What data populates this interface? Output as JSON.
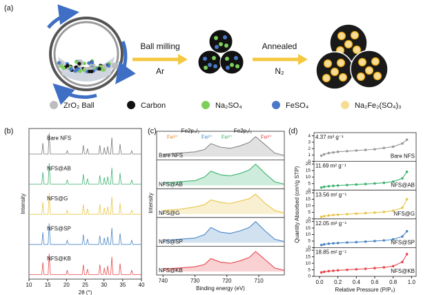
{
  "diagram": {
    "label": "(a)",
    "steps": [
      {
        "top": "Ball milling",
        "bottom": "Ar"
      },
      {
        "top": "Annealed",
        "bottom": "N₂"
      }
    ],
    "legend": [
      {
        "name": "ZrO₂ Ball",
        "color": "#bdbdbd"
      },
      {
        "name": "Carbon",
        "color": "#111111"
      },
      {
        "name": "Na₂SO₄",
        "color": "#7dcf5a"
      },
      {
        "name": "FeSO₄",
        "color": "#4a78c8"
      },
      {
        "name": "Na₂Fe₂(SO₄)₃",
        "color": "#f6dc94"
      }
    ]
  },
  "chart_data": [
    {
      "type": "line",
      "label": "(b)",
      "xlabel": "2θ (°)",
      "ylabel": "Intensity",
      "xlim": [
        10,
        40
      ],
      "xticks": [
        10,
        15,
        20,
        25,
        30,
        35,
        40
      ],
      "x": [
        10,
        13.4,
        13.7,
        14.0,
        15.1,
        15.4,
        15.7,
        19.9,
        20.2,
        20.5,
        24.2,
        24.5,
        24.8,
        25.3,
        25.6,
        25.9,
        28.6,
        28.9,
        29.2,
        29.8,
        30.1,
        30.4,
        30.7,
        31.0,
        31.3,
        31.8,
        32.1,
        32.4,
        34.0,
        34.3,
        34.6,
        37.1,
        37.4,
        37.7,
        40
      ],
      "series": [
        {
          "name": "Bare NFS",
          "color": "#777777",
          "values": [
            0.05,
            0.05,
            0.55,
            0.05,
            0.05,
            1.0,
            0.05,
            0.05,
            0.2,
            0.05,
            0.05,
            0.45,
            0.05,
            0.05,
            0.3,
            0.05,
            0.05,
            0.45,
            0.05,
            0.05,
            0.35,
            0.05,
            0.05,
            0.4,
            0.05,
            0.05,
            0.8,
            0.05,
            0.05,
            0.5,
            0.05,
            0.05,
            0.2,
            0.05,
            0.05
          ]
        },
        {
          "name": "NFS@AB",
          "color": "#3cb371",
          "values": [
            0.05,
            0.05,
            0.6,
            0.05,
            0.05,
            1.0,
            0.05,
            0.05,
            0.25,
            0.05,
            0.05,
            0.5,
            0.05,
            0.05,
            0.3,
            0.05,
            0.05,
            0.45,
            0.05,
            0.05,
            0.35,
            0.05,
            0.05,
            0.4,
            0.05,
            0.05,
            0.8,
            0.05,
            0.05,
            0.55,
            0.05,
            0.05,
            0.25,
            0.05,
            0.05
          ]
        },
        {
          "name": "NFS@G",
          "color": "#e8c547",
          "values": [
            0.05,
            0.05,
            0.6,
            0.05,
            0.05,
            1.0,
            0.05,
            0.05,
            0.25,
            0.05,
            0.05,
            0.5,
            0.05,
            0.05,
            0.3,
            0.05,
            0.05,
            0.5,
            0.05,
            0.05,
            0.35,
            0.05,
            0.05,
            0.4,
            0.05,
            0.05,
            0.85,
            0.05,
            0.05,
            0.55,
            0.05,
            0.05,
            0.25,
            0.05,
            0.05
          ]
        },
        {
          "name": "NFS@SP",
          "color": "#4a86c5",
          "values": [
            0.05,
            0.05,
            0.6,
            0.05,
            0.05,
            1.0,
            0.05,
            0.05,
            0.25,
            0.05,
            0.05,
            0.5,
            0.05,
            0.05,
            0.3,
            0.05,
            0.05,
            0.45,
            0.05,
            0.05,
            0.35,
            0.05,
            0.05,
            0.4,
            0.05,
            0.05,
            0.8,
            0.05,
            0.05,
            0.55,
            0.05,
            0.05,
            0.25,
            0.05,
            0.05
          ]
        },
        {
          "name": "NFS@KB",
          "color": "#e8474c",
          "values": [
            0.05,
            0.05,
            0.6,
            0.05,
            0.05,
            1.0,
            0.05,
            0.05,
            0.25,
            0.05,
            0.05,
            0.5,
            0.05,
            0.05,
            0.3,
            0.05,
            0.05,
            0.5,
            0.05,
            0.05,
            0.35,
            0.05,
            0.05,
            0.45,
            0.05,
            0.05,
            0.85,
            0.05,
            0.05,
            0.55,
            0.05,
            0.05,
            0.25,
            0.05,
            0.05
          ]
        }
      ]
    },
    {
      "type": "line",
      "label": "(c)",
      "xlabel": "Binding energy (eV)",
      "ylabel": "Intensity",
      "xlim": [
        742,
        702
      ],
      "xticks": [
        740,
        730,
        720,
        710
      ],
      "annotations": [
        {
          "text": "Fe³⁺",
          "color": "#e88a2e"
        },
        {
          "text": "Fe2p₃/₂",
          "color": "#111111"
        },
        {
          "text": "Fe²⁺",
          "color": "#4a86c5"
        },
        {
          "text": "Fe²⁺",
          "color": "#3cb371"
        },
        {
          "text": "Fe2p₁/₂",
          "color": "#111111"
        },
        {
          "text": "Fe³⁺",
          "color": "#e8474c"
        }
      ],
      "x": [
        740,
        735,
        730,
        727,
        725,
        722,
        719,
        716,
        713,
        711,
        708,
        705,
        702
      ],
      "series": [
        {
          "name": "Bare NFS",
          "color": "#888888",
          "values": [
            0.1,
            0.15,
            0.2,
            0.3,
            0.55,
            0.4,
            0.35,
            0.45,
            0.6,
            0.85,
            0.5,
            0.15,
            0.05
          ]
        },
        {
          "name": "NFS@AB",
          "color": "#3cb371",
          "values": [
            0.1,
            0.15,
            0.2,
            0.35,
            0.6,
            0.45,
            0.4,
            0.5,
            0.65,
            0.9,
            0.5,
            0.15,
            0.05
          ]
        },
        {
          "name": "NFS@G",
          "color": "#e8c547",
          "values": [
            0.15,
            0.2,
            0.3,
            0.4,
            0.6,
            0.5,
            0.45,
            0.55,
            0.65,
            0.85,
            0.45,
            0.15,
            0.05
          ]
        },
        {
          "name": "NFS@SP",
          "color": "#4a86c5",
          "values": [
            0.1,
            0.15,
            0.2,
            0.35,
            0.65,
            0.45,
            0.4,
            0.5,
            0.65,
            0.9,
            0.5,
            0.15,
            0.05
          ]
        },
        {
          "name": "NFS@KB",
          "color": "#e8474c",
          "values": [
            0.1,
            0.15,
            0.2,
            0.3,
            0.55,
            0.4,
            0.35,
            0.45,
            0.6,
            0.85,
            0.5,
            0.15,
            0.05
          ]
        }
      ]
    },
    {
      "type": "line",
      "label": "(d)",
      "xlabel": "Relative Pressure (P/P₀)",
      "ylabel": "Quantity Absorbed (cm³/g STP)",
      "xlim": [
        -0.06,
        1.05
      ],
      "xticks": [
        {
          "value": 0,
          "label": "0.0"
        },
        {
          "value": 0.2,
          "label": "0.2"
        },
        {
          "value": 0.4,
          "label": "0.4"
        },
        {
          "value": 0.6,
          "label": "0.6"
        },
        {
          "value": 0.8,
          "label": "0.8"
        },
        {
          "value": 1,
          "label": "1.0"
        }
      ],
      "x": [
        0.02,
        0.05,
        0.1,
        0.15,
        0.2,
        0.3,
        0.4,
        0.5,
        0.6,
        0.7,
        0.8,
        0.9,
        0.95
      ],
      "series": [
        {
          "name": "Bare NFS",
          "area": "4.37 m² g⁻¹",
          "color": "#999999",
          "ylim": [
            0,
            4.5
          ],
          "yticks": [
            0,
            1,
            2,
            3,
            4
          ],
          "values": [
            0.9,
            1.1,
            1.3,
            1.4,
            1.5,
            1.6,
            1.7,
            1.8,
            1.9,
            2.1,
            2.3,
            2.8,
            3.4
          ]
        },
        {
          "name": "NFS@AB",
          "area": "11.69 m² g⁻¹",
          "color": "#3cb371",
          "ylim": [
            0,
            22
          ],
          "yticks": [
            0,
            5,
            10,
            15,
            20
          ],
          "values": [
            2,
            2.5,
            3,
            3.3,
            3.5,
            3.9,
            4.3,
            4.7,
            5.1,
            5.6,
            6.5,
            9,
            14
          ]
        },
        {
          "name": "NFS@G",
          "area": "13.56 m² g⁻¹",
          "color": "#e8c547",
          "ylim": [
            0,
            22
          ],
          "yticks": [
            0,
            5,
            10,
            15,
            20
          ],
          "values": [
            1.5,
            2,
            2.6,
            3,
            3.2,
            3.6,
            4,
            4.4,
            4.8,
            5.3,
            6.2,
            8.5,
            15
          ]
        },
        {
          "name": "NFS@SP",
          "area": "12.05 m² g⁻¹",
          "color": "#4a86c5",
          "ylim": [
            0,
            22
          ],
          "yticks": [
            0,
            5,
            10,
            15,
            20
          ],
          "values": [
            2,
            2.5,
            3,
            3.3,
            3.5,
            3.9,
            4.2,
            4.6,
            5,
            5.5,
            6.3,
            8.5,
            12.5
          ]
        },
        {
          "name": "NFS@KB",
          "area": "18.85 m² g⁻¹",
          "color": "#e8474c",
          "ylim": [
            0,
            22
          ],
          "yticks": [
            0,
            5,
            10,
            15,
            20
          ],
          "values": [
            3,
            3.5,
            4,
            4.3,
            4.6,
            5,
            5.4,
            5.8,
            6.3,
            6.9,
            7.8,
            11,
            17
          ]
        }
      ]
    }
  ]
}
